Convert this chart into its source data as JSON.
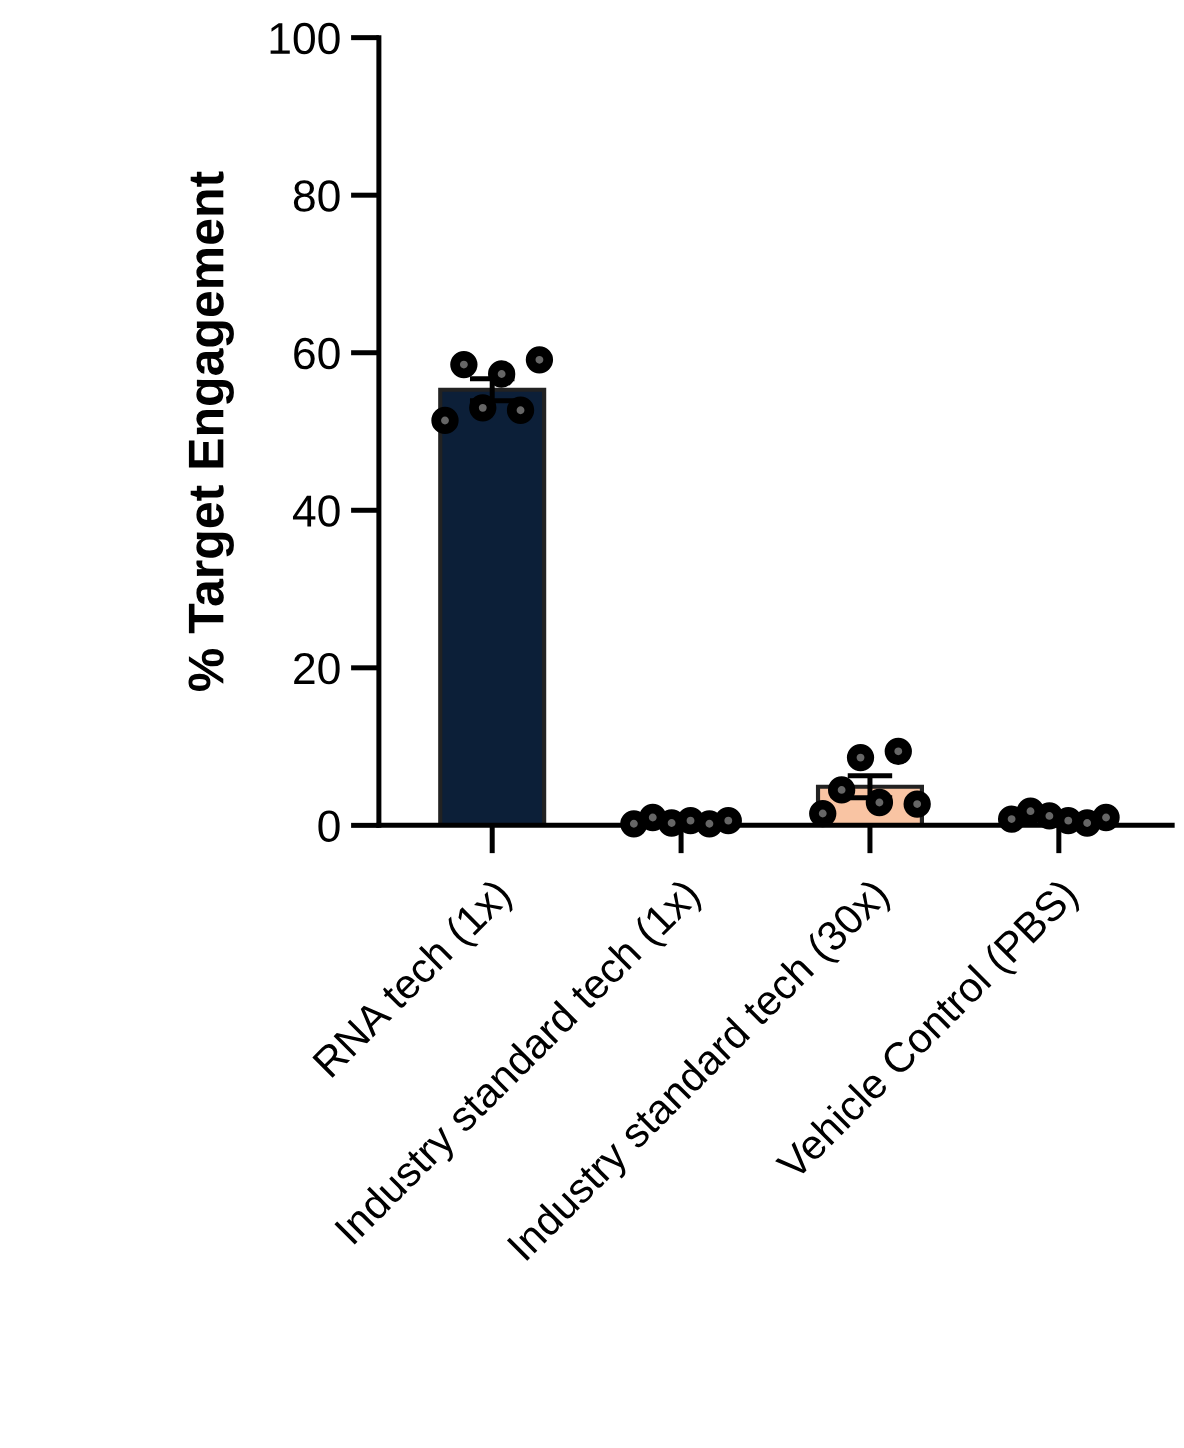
{
  "chart_data": {
    "type": "bar",
    "ylabel": "% Target Engagement",
    "categories": [
      "RNA tech (1x)",
      "Industry standard tech (1x)",
      "Industry standard tech (30x)",
      "Vehicle Control (PBS)"
    ],
    "series": [
      {
        "colors": [
          "#0c1f38",
          "#ffffff",
          "#f9c4a3",
          "#ffffff"
        ],
        "values": [
          55.3,
          null,
          4.9,
          null
        ],
        "errors": [
          1.4,
          null,
          1.4,
          null
        ]
      },
      {
        "type": "scatter",
        "color": "#000000",
        "x": [
          "RNA tech (1x)",
          "RNA tech (1x)",
          "RNA tech (1x)",
          "RNA tech (1x)",
          "RNA tech (1x)",
          "RNA tech (1x)",
          "Industry standard tech (1x)",
          "Industry standard tech (1x)",
          "Industry standard tech (1x)",
          "Industry standard tech (1x)",
          "Industry standard tech (1x)",
          "Industry standard tech (1x)",
          "Industry standard tech (30x)",
          "Industry standard tech (30x)",
          "Industry standard tech (30x)",
          "Industry standard tech (30x)",
          "Industry standard tech (30x)",
          "Industry standard tech (30x)",
          "Vehicle Control (PBS)",
          "Vehicle Control (PBS)",
          "Vehicle Control (PBS)",
          "Vehicle Control (PBS)",
          "Vehicle Control (PBS)",
          "Vehicle Control (PBS)"
        ],
        "values": [
          51.4,
          58.5,
          53.0,
          57.3,
          52.7,
          59.1,
          0.2,
          1.0,
          0.3,
          0.6,
          0.2,
          0.6,
          1.5,
          4.5,
          8.6,
          2.9,
          9.4,
          2.7,
          0.8,
          1.8,
          1.2,
          0.6,
          0.3,
          1.0
        ]
      }
    ],
    "ylim": [
      0,
      100
    ],
    "yticks": [
      0,
      20,
      40,
      60,
      80,
      100
    ],
    "grid": false,
    "legend": false,
    "marker": "circle"
  }
}
